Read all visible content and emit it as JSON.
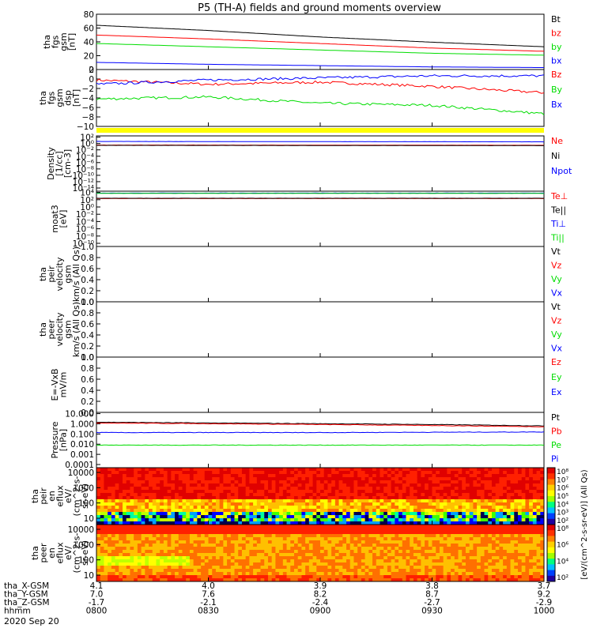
{
  "title": "P5 (TH-A) fields and ground moments overview",
  "date_label": "2020 Sep 20",
  "time_axis": {
    "rows": [
      {
        "label": "tha_X-GSM",
        "values": [
          "4.1",
          "4.0",
          "3.9",
          "3.8",
          "3.7"
        ]
      },
      {
        "label": "tha_Y-GSM",
        "values": [
          "7.0",
          "7.6",
          "8.2",
          "8.7",
          "9.2"
        ]
      },
      {
        "label": "tha_Z-GSM",
        "values": [
          "-1.7",
          "-2.1",
          "-2.4",
          "-2.7",
          "-2.9"
        ]
      },
      {
        "label": "hhmm",
        "values": [
          "0800",
          "0830",
          "0900",
          "0930",
          "1000"
        ]
      }
    ]
  },
  "colors": {
    "black": "#000000",
    "red": "#ff0000",
    "green": "#00dd00",
    "blue": "#0000ff",
    "yellow": "#ffff00"
  },
  "chart_data": [
    {
      "type": "line",
      "ylabel": [
        "tha",
        "fgs",
        "gsm",
        "[nT]"
      ],
      "ylim": [
        0,
        85
      ],
      "yticks": [
        "0",
        "20",
        "40",
        "60",
        "80"
      ],
      "x": [
        "0800",
        "0830",
        "0900",
        "0930",
        "1000"
      ],
      "series": [
        {
          "name": "Bt",
          "color": "#000000",
          "values": [
            68,
            60,
            50,
            42,
            35
          ]
        },
        {
          "name": "bz",
          "color": "#ff0000",
          "values": [
            53,
            47,
            40,
            33,
            28
          ]
        },
        {
          "name": "by",
          "color": "#00dd00",
          "values": [
            40,
            35,
            30,
            25,
            22
          ]
        },
        {
          "name": "bx",
          "color": "#0000ff",
          "values": [
            11,
            8,
            6,
            4,
            3
          ]
        }
      ]
    },
    {
      "type": "line",
      "ylabel": [
        "tha",
        "fgs",
        "gsm",
        "dsp",
        "[nT]"
      ],
      "ylim": [
        -11,
        2.5
      ],
      "yticks": [
        "−10",
        "−8",
        "−6",
        "−4",
        "−2",
        "0",
        "2"
      ],
      "x": [
        "0800",
        "0830",
        "0900",
        "0930",
        "1000"
      ],
      "series": [
        {
          "name": "Bz",
          "color": "#ff0000",
          "values": [
            0,
            -1,
            -0.5,
            -1.5,
            -3
          ]
        },
        {
          "name": "By",
          "color": "#00dd00",
          "values": [
            -4.5,
            -4,
            -5.5,
            -6,
            -8
          ]
        },
        {
          "name": "Bx",
          "color": "#0000ff",
          "values": [
            -1,
            0,
            0.5,
            1,
            1
          ]
        }
      ]
    },
    {
      "type": "line",
      "ylabel": [
        "Density",
        "[1/cc]",
        "[cm-3]"
      ],
      "ylim": [
        "1e-14",
        "1e3"
      ],
      "scale": "log",
      "yticks": [
        "10⁻¹⁴",
        "10⁻¹²",
        "10⁻¹⁰",
        "10⁻⁸",
        "10⁻⁶",
        "10⁻⁴",
        "10⁻²",
        "10⁰",
        "10²"
      ],
      "series": [
        {
          "name": "Ne",
          "color": "#ff0000",
          "values": [
            1.5,
            1.5,
            1.4,
            1.4,
            1.3
          ]
        },
        {
          "name": "Ni",
          "color": "#000000",
          "values": [
            1.2,
            1.2,
            1.1,
            1.1,
            1.0
          ]
        },
        {
          "name": "Npot",
          "color": "#0000ff",
          "values": [
            20,
            18,
            17,
            16,
            15
          ]
        }
      ]
    },
    {
      "type": "line",
      "ylabel": [
        "moat3",
        "[eV]"
      ],
      "ylim": [
        "1e-10",
        "1e5"
      ],
      "scale": "log",
      "yticks": [
        "10⁻¹⁰",
        "10⁻⁸",
        "10⁻⁶",
        "10⁻⁴",
        "10⁻²",
        "10⁰",
        "10²",
        "10⁴"
      ],
      "series": [
        {
          "name": "Te⊥",
          "color": "#ff0000",
          "values": [
            1000,
            1000,
            1000,
            1000,
            1000
          ]
        },
        {
          "name": "Te||",
          "color": "#000000",
          "values": [
            1200,
            1200,
            1200,
            1200,
            1200
          ]
        },
        {
          "name": "Ti⊥",
          "color": "#0000ff",
          "values": [
            30000,
            30000,
            30000,
            30000,
            30000
          ]
        },
        {
          "name": "Ti||",
          "color": "#00dd00",
          "values": [
            25000,
            25000,
            25000,
            25000,
            25000
          ]
        }
      ]
    },
    {
      "type": "line",
      "ylabel": [
        "tha",
        "peir",
        "velocity",
        "gsm",
        "km/s (All Qs)"
      ],
      "ylim": [
        0,
        1
      ],
      "yticks": [
        "0.0",
        "0.2",
        "0.4",
        "0.6",
        "0.8",
        "1.0"
      ],
      "series": [
        {
          "name": "Vt",
          "color": "#000000",
          "values": []
        },
        {
          "name": "Vz",
          "color": "#ff0000",
          "values": []
        },
        {
          "name": "Vy",
          "color": "#00dd00",
          "values": []
        },
        {
          "name": "Vx",
          "color": "#0000ff",
          "values": []
        }
      ]
    },
    {
      "type": "line",
      "ylabel": [
        "tha",
        "peer",
        "velocity",
        "gsm",
        "km/s (All Qs)"
      ],
      "ylim": [
        0,
        1
      ],
      "yticks": [
        "0.0",
        "0.2",
        "0.4",
        "0.6",
        "0.8",
        "1.0"
      ],
      "series": [
        {
          "name": "Vt",
          "color": "#000000",
          "values": []
        },
        {
          "name": "Vz",
          "color": "#ff0000",
          "values": []
        },
        {
          "name": "Vy",
          "color": "#00dd00",
          "values": []
        },
        {
          "name": "Vx",
          "color": "#0000ff",
          "values": []
        }
      ]
    },
    {
      "type": "line",
      "ylabel": [
        "E=-VxB",
        "mV/m"
      ],
      "ylim": [
        0,
        1
      ],
      "yticks": [
        "0.0",
        "0.2",
        "0.4",
        "0.6",
        "0.8",
        "1.0"
      ],
      "series": [
        {
          "name": "Ez",
          "color": "#ff0000",
          "values": []
        },
        {
          "name": "Ey",
          "color": "#00dd00",
          "values": []
        },
        {
          "name": "Ex",
          "color": "#0000ff",
          "values": []
        }
      ]
    },
    {
      "type": "line",
      "ylabel": [
        "Pressure",
        "[nPa]"
      ],
      "ylim": [
        "1e-4",
        "1e1"
      ],
      "scale": "log",
      "yticks": [
        "0.0001",
        "0.001",
        "0.010",
        "0.100",
        "1.000",
        "10.000"
      ],
      "series": [
        {
          "name": "Pt",
          "color": "#000000",
          "values": [
            1.3,
            1.1,
            0.95,
            0.8,
            0.6
          ]
        },
        {
          "name": "Pb",
          "color": "#ff0000",
          "values": [
            1.1,
            0.95,
            0.8,
            0.65,
            0.5
          ]
        },
        {
          "name": "Pe",
          "color": "#00dd00",
          "values": [
            0.011,
            0.011,
            0.011,
            0.011,
            0.011
          ]
        },
        {
          "name": "Pi",
          "color": "#0000ff",
          "values": [
            0.15,
            0.15,
            0.15,
            0.16,
            0.17
          ]
        }
      ]
    },
    {
      "type": "heatmap",
      "ylabel": [
        "tha",
        "peir",
        "en",
        "eflux",
        "eV/",
        "(cm^2-s-",
        "sr-eV)"
      ],
      "ylim": [
        5,
        25000
      ],
      "scale": "log",
      "yticks": [
        "10",
        "100",
        "1000",
        "10000"
      ]
    },
    {
      "type": "heatmap",
      "ylabel": [
        "tha",
        "peer",
        "en",
        "eflux",
        "eV/",
        "(cm^2-s-",
        "sr-eV)"
      ],
      "ylim": [
        5,
        25000
      ],
      "scale": "log",
      "yticks": [
        "10",
        "100",
        "1000",
        "10000"
      ]
    }
  ],
  "colorbars": [
    {
      "label": "[eV/(cm^2-s-sr-eV)] (All Qs)",
      "ticks": [
        "10²",
        "10³",
        "10⁴",
        "10⁵",
        "10⁶",
        "10⁷",
        "10⁸"
      ]
    },
    {
      "label": "[eV/(cm^2-s-sr-eV)] (All Qs)",
      "ticks": [
        "10²",
        "10⁴",
        "10⁶",
        "10⁸"
      ]
    }
  ]
}
